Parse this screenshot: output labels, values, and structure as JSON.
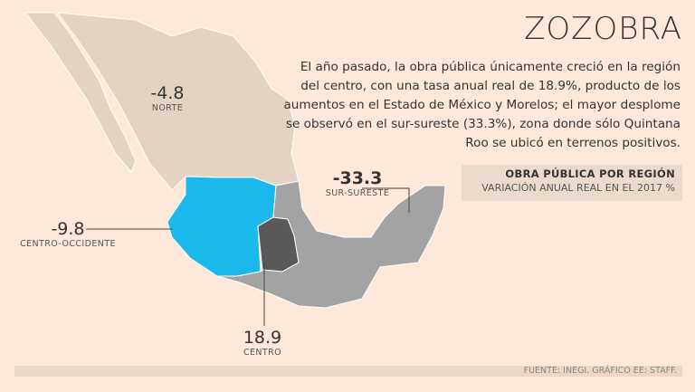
{
  "header": {
    "title": "ZOZOBRA",
    "description": "El año pasado, la obra pública únicamente creció en la región del centro, con una tasa anual real de 18.9%, producto de los aumentos en el Estado de México y Morelos; el mayor desplome se observó en el sur-sureste (33.3%), zona donde sólo Quintana Roo se ubicó en terrenos positivos."
  },
  "legend": {
    "title": "OBRA PÚBLICA POR REGIÓN",
    "subtitle": "VARIACIÓN ANUAL REAL EN EL 2017 %"
  },
  "regions": [
    {
      "name": "NORTE",
      "value": "-4.8",
      "color": "#e3d3c2"
    },
    {
      "name": "CENTRO-OCCIDENTE",
      "value": "-9.8",
      "color": "#1bb8ec"
    },
    {
      "name": "CENTRO",
      "value": "18.9",
      "color": "#595959"
    },
    {
      "name": "SUR-SURESTE",
      "value": "-33.3",
      "color": "#a3a3a3"
    }
  ],
  "footer": {
    "source": "FUENTE: INEGI. GRÁFICO EE: STAFF."
  }
}
